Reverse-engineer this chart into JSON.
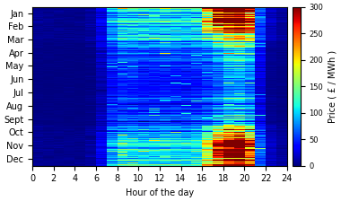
{
  "title": "",
  "xlabel": "Hour of the day",
  "ylabel": "Price ( £ / MWh )",
  "colormap": "jet",
  "vmin": 0,
  "vmax": 300,
  "colorbar_ticks": [
    0,
    50,
    100,
    150,
    200,
    250,
    300
  ],
  "xticks": [
    0,
    2,
    4,
    6,
    8,
    10,
    12,
    14,
    16,
    18,
    20,
    22,
    24
  ],
  "month_labels": [
    "Jan",
    "Feb",
    "Mar",
    "Apr",
    "May",
    "Jun",
    "Jul",
    "Aug",
    "Sept",
    "Oct",
    "Nov",
    "Dec"
  ],
  "month_days": [
    31,
    28,
    31,
    30,
    31,
    30,
    31,
    31,
    30,
    31,
    30,
    31
  ],
  "figsize": [
    3.8,
    2.24
  ],
  "dpi": 100
}
